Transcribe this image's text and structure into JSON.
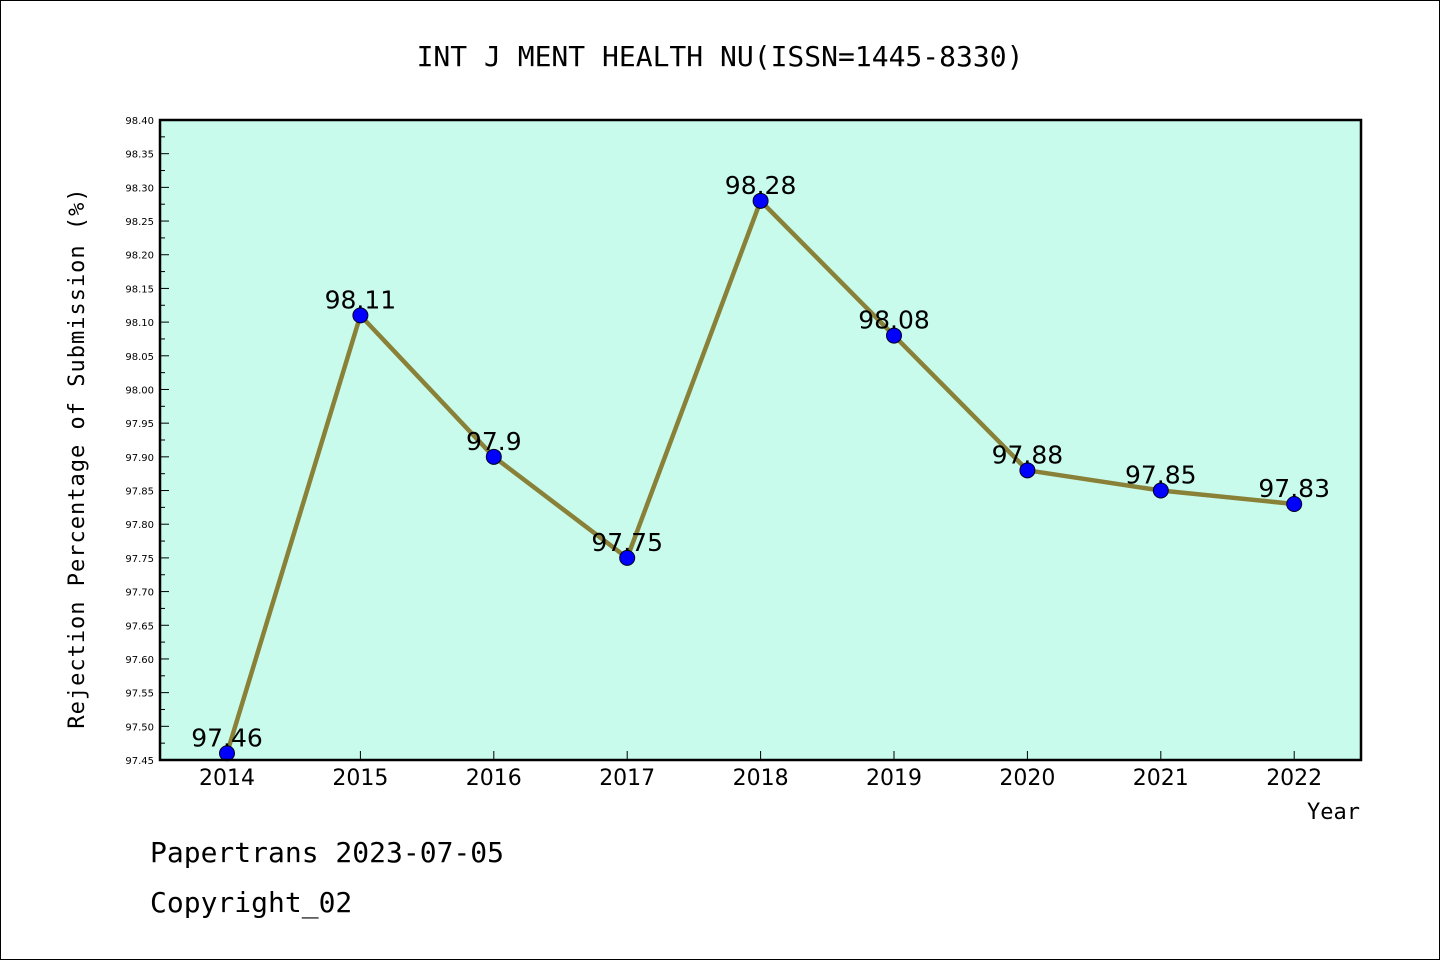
{
  "footer": {
    "line1": "Papertrans 2023-07-05",
    "line2": "Copyright_02"
  },
  "chart_data": {
    "type": "line",
    "title": "INT J MENT HEALTH NU(ISSN=1445-8330)",
    "xlabel": "Year",
    "ylabel": "Rejection Percentage of Submission (%)",
    "categories": [
      "2014",
      "2015",
      "2016",
      "2017",
      "2018",
      "2019",
      "2020",
      "2021",
      "2022"
    ],
    "series": [
      {
        "values": [
          97.46,
          98.11,
          97.9,
          97.75,
          98.28,
          98.08,
          97.88,
          97.85,
          97.83
        ],
        "labels": [
          "97.46",
          "98.11",
          "97.9",
          "97.75",
          "98.28",
          "98.08",
          "97.88",
          "97.85",
          "97.83"
        ]
      }
    ],
    "ylim": [
      97.45,
      98.4
    ],
    "yticks": [
      "97.45",
      "97.50",
      "97.55",
      "97.60",
      "97.65",
      "97.70",
      "97.75",
      "97.80",
      "97.85",
      "97.90",
      "97.95",
      "98.00",
      "98.05",
      "98.10",
      "98.15",
      "98.20",
      "98.25",
      "98.30",
      "98.35",
      "98.40"
    ],
    "grid": false,
    "legend": "none",
    "colors": {
      "plot_background": "#c8fbec",
      "line": "#8a8139",
      "marker": "#0000ff"
    }
  }
}
